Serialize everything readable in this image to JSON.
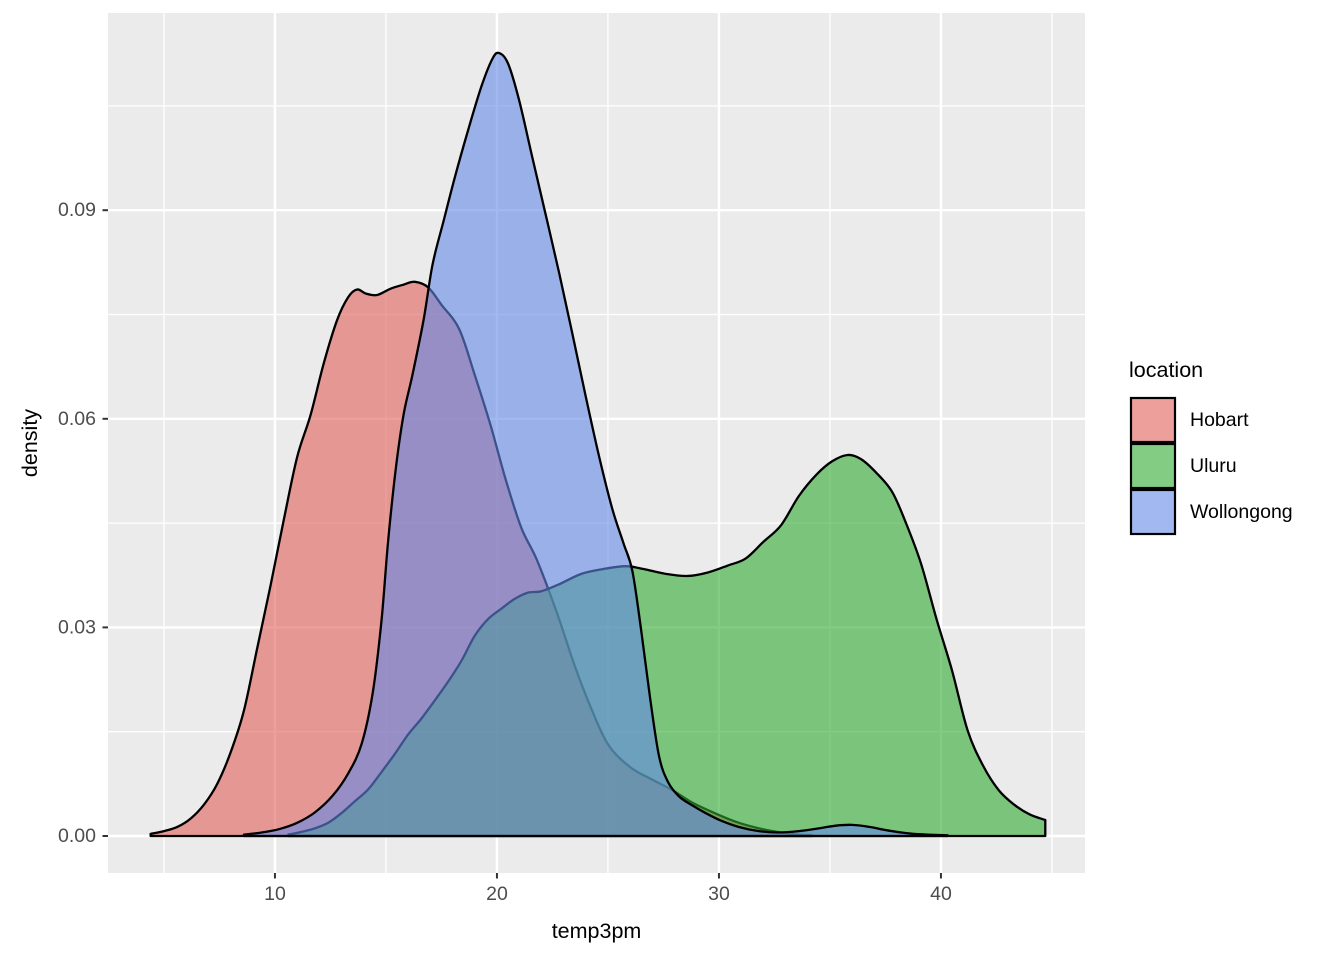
{
  "chart_data": {
    "type": "area",
    "subtype": "kernel-density",
    "title": "",
    "xlabel": "temp3pm",
    "ylabel": "density",
    "xlim": [
      2.57,
      46.5
    ],
    "ylim": [
      0,
      0.1184
    ],
    "grid": true,
    "panel_bg": "#EBEBEB",
    "grid_color": "#FFFFFF",
    "stroke_color": "#000000",
    "fill_opacity": 0.6,
    "x_ticks": [
      {
        "value": 10,
        "label": "10"
      },
      {
        "value": 20,
        "label": "20"
      },
      {
        "value": 30,
        "label": "30"
      },
      {
        "value": 40,
        "label": "40"
      }
    ],
    "y_ticks": [
      {
        "value": 0.0,
        "label": "0.00"
      },
      {
        "value": 0.03,
        "label": "0.03"
      },
      {
        "value": 0.06,
        "label": "0.06"
      },
      {
        "value": 0.09,
        "label": "0.09"
      }
    ],
    "x_minor": [
      5,
      15,
      25,
      35,
      45
    ],
    "y_minor": [
      0.015,
      0.045,
      0.075,
      0.105
    ],
    "legend": {
      "title": "location",
      "position": "right"
    },
    "series": [
      {
        "name": "Hobart",
        "color": "#E15F5A",
        "points": [
          [
            4.4,
            0.0003
          ],
          [
            5,
            0.0007
          ],
          [
            5.6,
            0.0013
          ],
          [
            6.2,
            0.0025
          ],
          [
            6.8,
            0.0045
          ],
          [
            7.4,
            0.0075
          ],
          [
            8,
            0.012
          ],
          [
            8.6,
            0.018
          ],
          [
            9.2,
            0.027
          ],
          [
            9.8,
            0.036
          ],
          [
            10.4,
            0.0455
          ],
          [
            11,
            0.0545
          ],
          [
            11.6,
            0.0605
          ],
          [
            12.2,
            0.068
          ],
          [
            12.8,
            0.0742
          ],
          [
            13.3,
            0.0775
          ],
          [
            13.7,
            0.0786
          ],
          [
            14.1,
            0.078
          ],
          [
            14.6,
            0.0778
          ],
          [
            15.2,
            0.0787
          ],
          [
            15.8,
            0.0793
          ],
          [
            16.3,
            0.0797
          ],
          [
            16.9,
            0.0789
          ],
          [
            17.5,
            0.0764
          ],
          [
            18.3,
            0.0729
          ],
          [
            19,
            0.0663
          ],
          [
            19.7,
            0.0592
          ],
          [
            20.4,
            0.0512
          ],
          [
            21.1,
            0.0443
          ],
          [
            21.8,
            0.0397
          ],
          [
            22.7,
            0.0321
          ],
          [
            23.5,
            0.0245
          ],
          [
            24.2,
            0.0187
          ],
          [
            25,
            0.0132
          ],
          [
            26,
            0.0099
          ],
          [
            27,
            0.0081
          ],
          [
            27.9,
            0.0066
          ],
          [
            28.8,
            0.0048
          ],
          [
            29.8,
            0.0033
          ],
          [
            30.8,
            0.002
          ],
          [
            31.8,
            0.0011
          ],
          [
            32.8,
            0.0005
          ],
          [
            33.6,
            0.0002
          ],
          [
            34.2,
            0.0001
          ]
        ]
      },
      {
        "name": "Uluru",
        "color": "#30AA32",
        "points": [
          [
            10.6,
            0.0002
          ],
          [
            11.2,
            0.0006
          ],
          [
            11.8,
            0.0011
          ],
          [
            12.4,
            0.0019
          ],
          [
            13,
            0.0033
          ],
          [
            13.6,
            0.005
          ],
          [
            14.2,
            0.0067
          ],
          [
            14.8,
            0.0092
          ],
          [
            15.4,
            0.0118
          ],
          [
            16,
            0.0146
          ],
          [
            16.6,
            0.0169
          ],
          [
            17.2,
            0.0195
          ],
          [
            17.8,
            0.0222
          ],
          [
            18.4,
            0.0252
          ],
          [
            19,
            0.0288
          ],
          [
            19.6,
            0.0312
          ],
          [
            20.2,
            0.0327
          ],
          [
            20.8,
            0.0341
          ],
          [
            21.4,
            0.035
          ],
          [
            22,
            0.0352
          ],
          [
            22.8,
            0.0362
          ],
          [
            23.8,
            0.0377
          ],
          [
            24.8,
            0.0384
          ],
          [
            25.8,
            0.0388
          ],
          [
            26.6,
            0.0384
          ],
          [
            27.6,
            0.0377
          ],
          [
            28.6,
            0.0374
          ],
          [
            29.5,
            0.0379
          ],
          [
            30.4,
            0.0389
          ],
          [
            31.2,
            0.0399
          ],
          [
            32,
            0.0423
          ],
          [
            32.8,
            0.0447
          ],
          [
            33.6,
            0.0489
          ],
          [
            34.4,
            0.052
          ],
          [
            35.1,
            0.0539
          ],
          [
            35.8,
            0.0548
          ],
          [
            36.4,
            0.0542
          ],
          [
            37.1,
            0.0522
          ],
          [
            37.8,
            0.0495
          ],
          [
            38.4,
            0.0452
          ],
          [
            39.1,
            0.0392
          ],
          [
            39.8,
            0.0312
          ],
          [
            40.5,
            0.0238
          ],
          [
            41.2,
            0.0152
          ],
          [
            41.9,
            0.0101
          ],
          [
            42.6,
            0.0066
          ],
          [
            43.3,
            0.0045
          ],
          [
            44,
            0.0031
          ],
          [
            44.7,
            0.0023
          ]
        ]
      },
      {
        "name": "Wollongong",
        "color": "#6488E8",
        "points": [
          [
            8.6,
            0.0002
          ],
          [
            9.4,
            0.0005
          ],
          [
            10.2,
            0.001
          ],
          [
            11,
            0.0019
          ],
          [
            11.8,
            0.0034
          ],
          [
            12.6,
            0.0058
          ],
          [
            13.3,
            0.009
          ],
          [
            13.9,
            0.0132
          ],
          [
            14.4,
            0.0205
          ],
          [
            14.8,
            0.031
          ],
          [
            15.1,
            0.0425
          ],
          [
            15.45,
            0.053
          ],
          [
            15.8,
            0.0607
          ],
          [
            16.2,
            0.0664
          ],
          [
            16.7,
            0.0743
          ],
          [
            17.1,
            0.0822
          ],
          [
            17.6,
            0.0885
          ],
          [
            18.1,
            0.0947
          ],
          [
            18.7,
            0.1015
          ],
          [
            19.3,
            0.1078
          ],
          [
            19.8,
            0.1118
          ],
          [
            20.1,
            0.1126
          ],
          [
            20.5,
            0.1111
          ],
          [
            21,
            0.1058
          ],
          [
            21.6,
            0.0975
          ],
          [
            22.2,
            0.0893
          ],
          [
            22.8,
            0.081
          ],
          [
            23.4,
            0.0722
          ],
          [
            24,
            0.0632
          ],
          [
            24.6,
            0.0546
          ],
          [
            25.2,
            0.047
          ],
          [
            25.7,
            0.0421
          ],
          [
            26.1,
            0.0381
          ],
          [
            26.5,
            0.0295
          ],
          [
            26.9,
            0.0198
          ],
          [
            27.3,
            0.0115
          ],
          [
            27.7,
            0.0078
          ],
          [
            28.2,
            0.0057
          ],
          [
            28.8,
            0.0044
          ],
          [
            29.4,
            0.0033
          ],
          [
            30.1,
            0.0022
          ],
          [
            30.9,
            0.0013
          ],
          [
            31.8,
            0.0007
          ],
          [
            32.7,
            0.0005
          ],
          [
            33.6,
            0.0007
          ],
          [
            34.5,
            0.0011
          ],
          [
            35.3,
            0.0015
          ],
          [
            36,
            0.0016
          ],
          [
            36.8,
            0.0013
          ],
          [
            37.6,
            0.0008
          ],
          [
            38.5,
            0.0004
          ],
          [
            39.4,
            0.0002
          ],
          [
            40.3,
            0.0001
          ]
        ]
      }
    ]
  }
}
